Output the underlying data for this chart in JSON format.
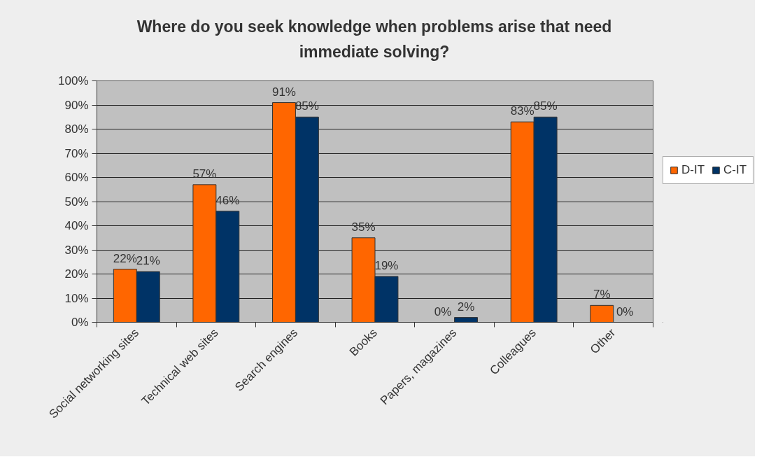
{
  "chart_data": {
    "type": "bar",
    "title": "Where do you seek knowledge when problems arise that need immediate solving?",
    "categories": [
      "Social networking sites",
      "Technical web sites",
      "Search engines",
      "Books",
      "Papers, magazines",
      "Colleagues",
      "Other"
    ],
    "series": [
      {
        "name": "D-IT",
        "color": "#ff6600",
        "values": [
          22,
          57,
          91,
          35,
          0,
          83,
          7
        ],
        "value_labels": [
          "22%",
          "57%",
          "91%",
          "35%",
          "0%",
          "83%",
          "7%"
        ]
      },
      {
        "name": "C-IT",
        "color": "#003366",
        "values": [
          21,
          46,
          85,
          19,
          2,
          85,
          0
        ],
        "value_labels": [
          "21%",
          "46%",
          "85%",
          "19%",
          "2%",
          "85%",
          "0%"
        ]
      }
    ],
    "ylim": [
      0,
      100
    ],
    "yticks": [
      {
        "value": 0,
        "label": "0%"
      },
      {
        "value": 10,
        "label": "10%"
      },
      {
        "value": 20,
        "label": "20%"
      },
      {
        "value": 30,
        "label": "30%"
      },
      {
        "value": 40,
        "label": "40%"
      },
      {
        "value": 50,
        "label": "50%"
      },
      {
        "value": 60,
        "label": "60%"
      },
      {
        "value": 70,
        "label": "70%"
      },
      {
        "value": 80,
        "label": "80%"
      },
      {
        "value": 90,
        "label": "90%"
      },
      {
        "value": 100,
        "label": "100%"
      }
    ],
    "grid": "y",
    "legend": "right"
  }
}
